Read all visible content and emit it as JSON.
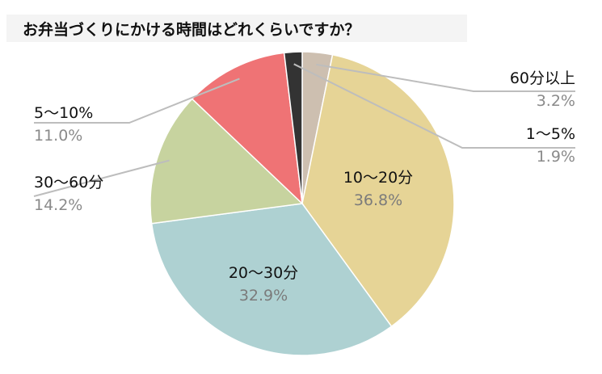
{
  "chart_data": {
    "type": "pie",
    "title": "お弁当づくりにかける時間はどれくらいですか？",
    "slices": [
      {
        "label": "60分以上",
        "value": 3.2,
        "value_text": "3.2%",
        "color": "#cdbfb0"
      },
      {
        "label": "10〜20分",
        "value": 36.8,
        "value_text": "36.8%",
        "color": "#e6d496"
      },
      {
        "label": "20〜30分",
        "value": 32.9,
        "value_text": "32.9%",
        "color": "#aed1d2"
      },
      {
        "label": "30〜60分",
        "value": 14.2,
        "value_text": "14.2%",
        "color": "#c7d39f"
      },
      {
        "label": "5〜10%",
        "value": 11.0,
        "value_text": "11.0%",
        "color": "#ef7375"
      },
      {
        "label": "1〜5%",
        "value": 1.9,
        "value_text": "1.9%",
        "color": "#333333"
      }
    ],
    "start_angle_deg": 0,
    "direction": "clockwise",
    "leader_line_color": "#bdbdbd"
  }
}
